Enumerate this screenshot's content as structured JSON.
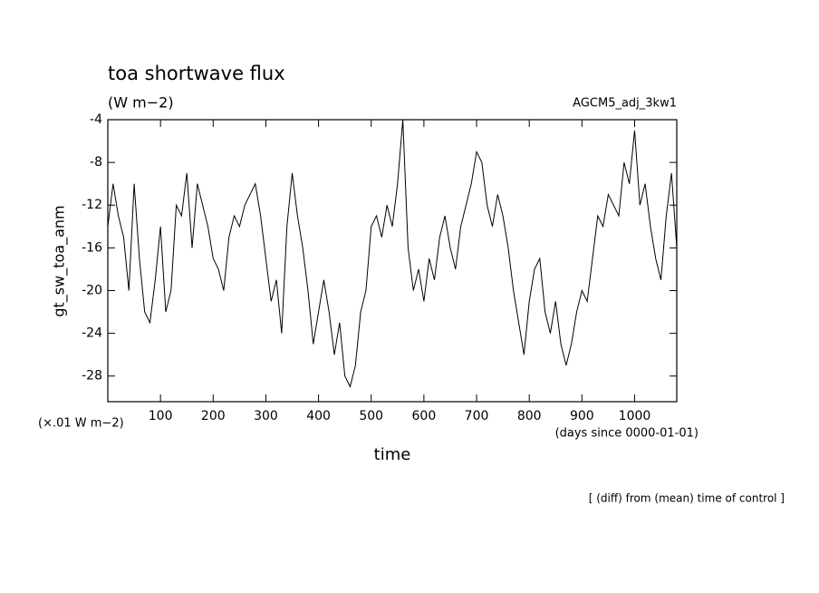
{
  "chart_data": {
    "type": "line",
    "title": "toa shortwave flux",
    "subtitle": "(W m−2)",
    "run_label": "AGCM5_adj_3kw1",
    "y_label": "gt_sw_toa_anm",
    "y_units": "(×.01 W m−2)",
    "x_label": "time",
    "x_units": "(days since 0000-01-01)",
    "footnote": "[ (diff) from (mean) time of control ]",
    "xlim": [
      0,
      1080
    ],
    "xticks": [
      100,
      200,
      300,
      400,
      500,
      600,
      700,
      800,
      900,
      1000
    ],
    "ylim": [
      -30.4,
      -4
    ],
    "yticks": [
      -4,
      -8,
      -12,
      -16,
      -20,
      -24,
      -28
    ],
    "color": "#000000",
    "x": [
      0,
      10,
      20,
      30,
      40,
      50,
      60,
      70,
      80,
      90,
      100,
      110,
      120,
      130,
      140,
      150,
      160,
      170,
      180,
      190,
      200,
      210,
      220,
      230,
      240,
      250,
      260,
      270,
      280,
      290,
      300,
      310,
      320,
      330,
      340,
      350,
      360,
      370,
      380,
      390,
      400,
      410,
      420,
      430,
      440,
      450,
      460,
      470,
      480,
      490,
      500,
      510,
      520,
      530,
      540,
      550,
      560,
      570,
      580,
      590,
      600,
      610,
      620,
      630,
      640,
      650,
      660,
      670,
      680,
      690,
      700,
      710,
      720,
      730,
      740,
      750,
      760,
      770,
      780,
      790,
      800,
      810,
      820,
      830,
      840,
      850,
      860,
      870,
      880,
      890,
      900,
      910,
      920,
      930,
      940,
      950,
      960,
      970,
      980,
      990,
      1000,
      1010,
      1020,
      1030,
      1040,
      1050,
      1060,
      1070,
      1080
    ],
    "values": [
      -14,
      -10,
      -13,
      -15,
      -20,
      -10,
      -17,
      -22,
      -23,
      -19,
      -14,
      -22,
      -20,
      -12,
      -13,
      -9,
      -16,
      -10,
      -12,
      -14,
      -17,
      -18,
      -20,
      -15,
      -13,
      -14,
      -12,
      -11,
      -10,
      -13,
      -17,
      -21,
      -19,
      -24,
      -14,
      -9,
      -13,
      -16,
      -20,
      -25,
      -22,
      -19,
      -22,
      -26,
      -23,
      -28,
      -29,
      -27,
      -22,
      -20,
      -14,
      -13,
      -15,
      -12,
      -14,
      -10,
      -4,
      -16,
      -20,
      -18,
      -21,
      -17,
      -19,
      -15,
      -13,
      -16,
      -18,
      -14,
      -12,
      -10,
      -7,
      -8,
      -12,
      -14,
      -11,
      -13,
      -16,
      -20,
      -23,
      -26,
      -21,
      -18,
      -17,
      -22,
      -24,
      -21,
      -25,
      -27,
      -25,
      -22,
      -20,
      -21,
      -17,
      -13,
      -14,
      -11,
      -12,
      -13,
      -8,
      -10,
      -5,
      -12,
      -10,
      -14,
      -17,
      -19,
      -13,
      -9,
      -16
    ]
  }
}
